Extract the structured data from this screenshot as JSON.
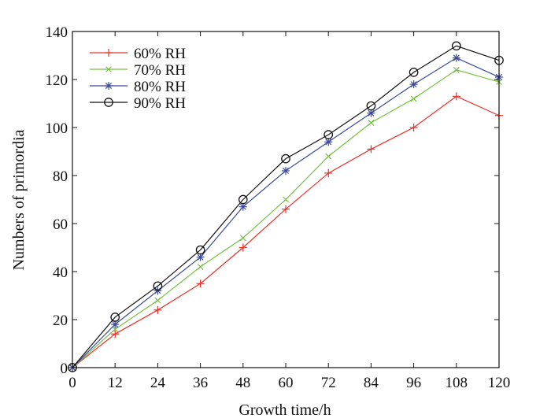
{
  "chart_data": {
    "type": "line",
    "title": "",
    "xlabel": "Growth time/h",
    "ylabel": "Numbers of primordia",
    "x": [
      0,
      12,
      24,
      36,
      48,
      60,
      72,
      84,
      96,
      108,
      120
    ],
    "xticks": [
      "0",
      "12",
      "24",
      "36",
      "48",
      "60",
      "72",
      "84",
      "96",
      "108",
      "120"
    ],
    "yticks": [
      "0",
      "20",
      "40",
      "60",
      "80",
      "100",
      "120",
      "140"
    ],
    "xlim": [
      0,
      120
    ],
    "ylim": [
      0,
      140
    ],
    "grid": false,
    "legend_position": "top-left",
    "series": [
      {
        "name": "60% RH",
        "color": "#e8312a",
        "marker": "plus",
        "values": [
          0,
          14,
          24,
          35,
          50,
          66,
          81,
          91,
          100,
          113,
          105
        ]
      },
      {
        "name": "70% RH",
        "color": "#77c043",
        "marker": "x",
        "values": [
          0,
          16,
          28,
          42,
          54,
          70,
          88,
          102,
          112,
          124,
          119
        ]
      },
      {
        "name": "80% RH",
        "color": "#3b4a98",
        "marker": "asterisk",
        "values": [
          0,
          18,
          32,
          46,
          67,
          82,
          94,
          106,
          118,
          129,
          121
        ]
      },
      {
        "name": "90% RH",
        "color": "#111111",
        "marker": "circle",
        "values": [
          0,
          21,
          34,
          49,
          70,
          87,
          97,
          109,
          123,
          134,
          128
        ]
      }
    ]
  }
}
